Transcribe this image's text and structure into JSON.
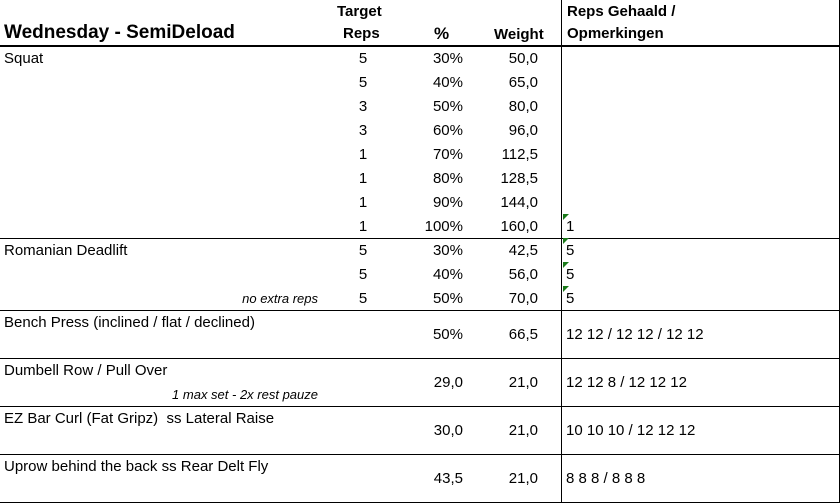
{
  "header": {
    "title": "Wednesday - SemiDeload",
    "col_target": "Target",
    "col_reps": "Reps",
    "col_pct": "%",
    "col_weight": "Weight",
    "col_notes_1": "Reps Gehaald /",
    "col_notes_2": "Opmerkingen"
  },
  "table": {
    "rows": [
      {
        "exercise": "Squat",
        "reps": "5",
        "pct": "30%",
        "weight": "50,0"
      },
      {
        "reps": "5",
        "pct": "40%",
        "weight": "65,0"
      },
      {
        "reps": "3",
        "pct": "50%",
        "weight": "80,0"
      },
      {
        "reps": "3",
        "pct": "60%",
        "weight": "96,0"
      },
      {
        "reps": "1",
        "pct": "70%",
        "weight": "112,5"
      },
      {
        "reps": "1",
        "pct": "80%",
        "weight": "128,5"
      },
      {
        "reps": "1",
        "pct": "90%",
        "weight": "144,0"
      },
      {
        "reps": "1",
        "pct": "100%",
        "weight": "160,0",
        "result": "1"
      },
      {
        "exercise": "Romanian Deadlift",
        "reps": "5",
        "pct": "30%",
        "weight": "42,5",
        "result": "5"
      },
      {
        "reps": "5",
        "pct": "40%",
        "weight": "56,0",
        "result": "5"
      },
      {
        "note": "no extra reps",
        "reps": "5",
        "pct": "50%",
        "weight": "70,0",
        "result": "5"
      },
      {
        "exercise": "Bench Press (inclined / flat / declined)",
        "pct": "50%",
        "weight": "66,5",
        "result": "12 12 / 12 12 / 12 12"
      },
      {
        "exercise": "Dumbell Row / Pull Over",
        "note": "1 max set - 2x rest pauze",
        "pct": "29,0",
        "weight": "21,0",
        "result": "12 12 8 / 12 12 12"
      },
      {
        "exercise": "EZ Bar Curl (Fat Gripz)  ss Lateral Raise",
        "pct": "30,0",
        "weight": "21,0",
        "result": "10 10 10 / 12 12 12"
      },
      {
        "exercise": "Uprow behind the back ss Rear Delt Fly",
        "pct": "43,5",
        "weight": "21,0",
        "result": "8 8 8 / 8 8 8"
      }
    ]
  }
}
